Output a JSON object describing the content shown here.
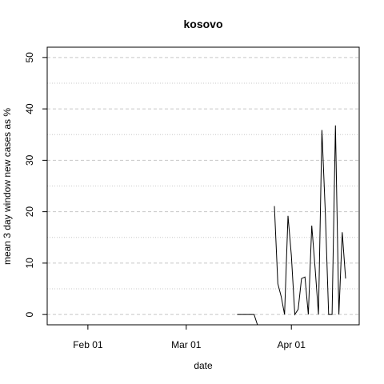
{
  "chart_data": {
    "type": "line",
    "title": "kosovo",
    "xlabel": "date",
    "ylabel": "mean  3  day window new cases as %",
    "x_axis": {
      "type": "date",
      "range": [
        "2020-01-20",
        "2020-04-21"
      ],
      "ticks": [
        {
          "date": "2020-02-01",
          "label": "Feb 01"
        },
        {
          "date": "2020-03-01",
          "label": "Mar 01"
        },
        {
          "date": "2020-04-01",
          "label": "Apr 01"
        }
      ]
    },
    "y_axis": {
      "range": [
        -2,
        52
      ],
      "ticks": [
        0,
        10,
        20,
        30,
        40,
        50
      ]
    },
    "grid": {
      "major_y": [
        0,
        10,
        20,
        30,
        40,
        50
      ],
      "minor_y": [
        5,
        15,
        25,
        35,
        45
      ],
      "style": "dashed-gray"
    },
    "series": [
      {
        "color": "#000000",
        "points": [
          {
            "x": "2020-03-16",
            "y": 0
          },
          {
            "x": "2020-03-17",
            "y": 0
          },
          {
            "x": "2020-03-18",
            "y": 0
          },
          {
            "x": "2020-03-19",
            "y": 0
          },
          {
            "x": "2020-03-20",
            "y": 0
          },
          {
            "x": "2020-03-21",
            "y": 0
          },
          {
            "x": "2020-03-22",
            "y": -2
          },
          {
            "x": null,
            "y": null
          },
          {
            "x": "2020-03-27",
            "y": 21.1
          },
          {
            "x": "2020-03-28",
            "y": 6
          },
          {
            "x": "2020-03-29",
            "y": 3.5
          },
          {
            "x": "2020-03-30",
            "y": 0
          },
          {
            "x": "2020-03-31",
            "y": 19.2
          },
          {
            "x": "2020-04-01",
            "y": 11.5
          },
          {
            "x": "2020-04-02",
            "y": 0
          },
          {
            "x": "2020-04-03",
            "y": 1
          },
          {
            "x": "2020-04-04",
            "y": 7
          },
          {
            "x": "2020-04-05",
            "y": 7.3
          },
          {
            "x": "2020-04-06",
            "y": 0
          },
          {
            "x": "2020-04-07",
            "y": 17.3
          },
          {
            "x": "2020-04-08",
            "y": 9
          },
          {
            "x": "2020-04-09",
            "y": 0
          },
          {
            "x": "2020-04-10",
            "y": 35.9
          },
          {
            "x": "2020-04-11",
            "y": 20
          },
          {
            "x": "2020-04-12",
            "y": 0
          },
          {
            "x": "2020-04-13",
            "y": 0
          },
          {
            "x": "2020-04-14",
            "y": 36.8
          },
          {
            "x": "2020-04-15",
            "y": 0
          },
          {
            "x": "2020-04-16",
            "y": 16
          },
          {
            "x": "2020-04-17",
            "y": 7
          }
        ]
      }
    ]
  }
}
